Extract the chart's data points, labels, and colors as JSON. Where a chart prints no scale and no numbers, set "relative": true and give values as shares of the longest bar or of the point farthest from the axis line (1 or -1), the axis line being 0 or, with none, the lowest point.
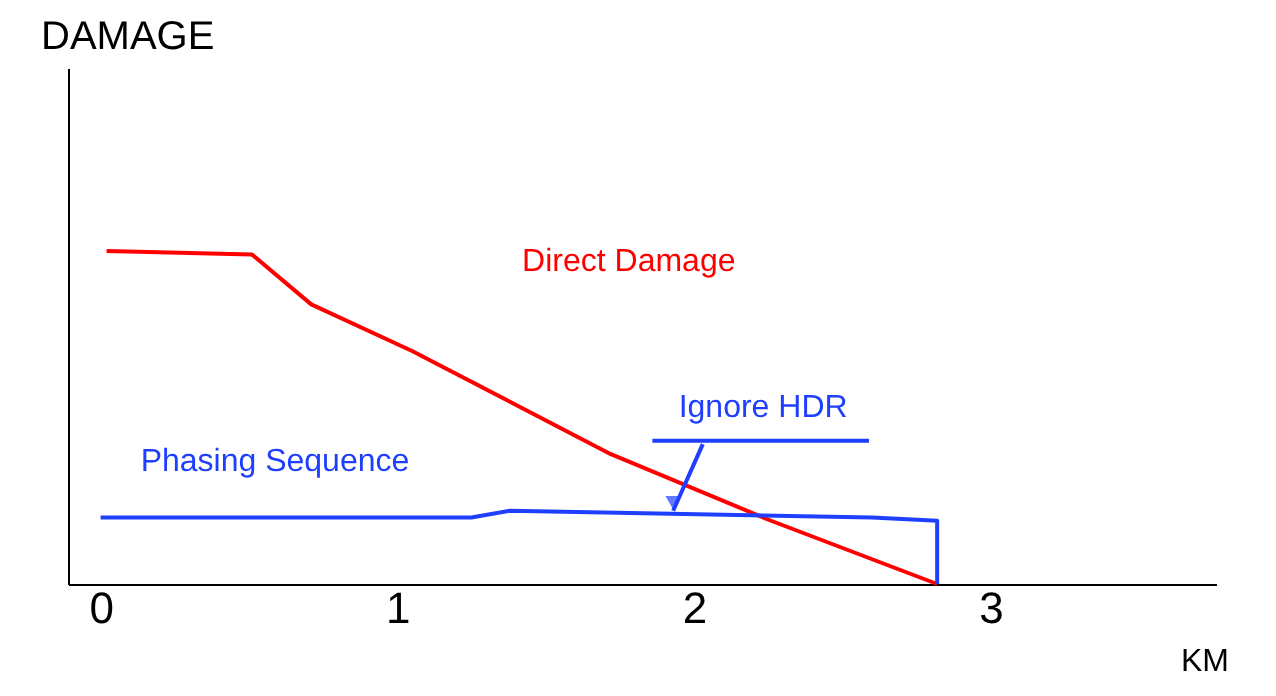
{
  "chart_data": {
    "type": "line",
    "relative": true,
    "xlabel": "KM",
    "ylabel": "DAMAGE",
    "xlim": [
      -0.11,
      3.76
    ],
    "xticks": [
      0,
      1,
      2,
      3
    ],
    "marker": "none",
    "line_style": "solid",
    "series": [
      {
        "name": "Direct Damage",
        "color": "#ff0000",
        "x": [
          0.02,
          0.51,
          0.71,
          1.05,
          1.72,
          2.26,
          2.82
        ],
        "values": [
          1.0,
          0.99,
          0.84,
          0.7,
          0.39,
          0.19,
          0
        ]
      },
      {
        "name": "Phasing Sequence",
        "color": "#1f3fff",
        "x": [
          0,
          1.25,
          1.38,
          2.6,
          2.82,
          2.82
        ],
        "values": [
          0.2,
          0.2,
          0.22,
          0.2,
          0.19,
          0
        ]
      }
    ],
    "annotations": [
      {
        "text": "Ignore HDR",
        "x": 1.93,
        "y": 0.22
      }
    ]
  }
}
